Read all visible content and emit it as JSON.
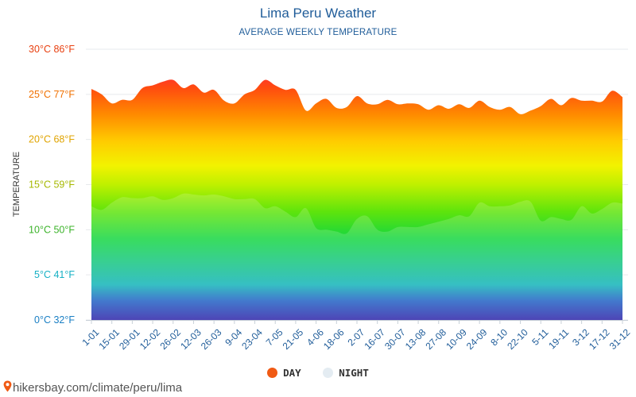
{
  "footer": {
    "url": "hikersbay.com/climate/peru/lima"
  },
  "legend": {
    "day_label": "DAY",
    "night_label": "NIGHT"
  },
  "colors": {
    "day_dot": "#f05a14",
    "night_dot": "#e4ecf2",
    "title": "#1f5c99",
    "axis_text": "#1f5c99"
  },
  "icons": {
    "footer_icon": "map-pin-icon"
  },
  "chart_data": {
    "type": "area",
    "title": "Lima Peru Weather",
    "subtitle": "AVERAGE WEEKLY TEMPERATURE",
    "ylabel": "TEMPERATURE",
    "ylim": [
      0,
      30
    ],
    "y_ticks": [
      {
        "value": 0,
        "label": "0°C 32°F",
        "color": "#1a7fc4"
      },
      {
        "value": 5,
        "label": "5°C 41°F",
        "color": "#16b0c4"
      },
      {
        "value": 10,
        "label": "10°C 50°F",
        "color": "#3cb32a"
      },
      {
        "value": 15,
        "label": "15°C 59°F",
        "color": "#a6b800"
      },
      {
        "value": 20,
        "label": "20°C 68°F",
        "color": "#e0a400"
      },
      {
        "value": 25,
        "label": "25°C 77°F",
        "color": "#f07000"
      },
      {
        "value": 30,
        "label": "30°C 86°F",
        "color": "#e84010"
      }
    ],
    "x_tick_labels": [
      "1-01",
      "15-01",
      "29-01",
      "12-02",
      "26-02",
      "12-03",
      "26-03",
      "9-04",
      "23-04",
      "7-05",
      "21-05",
      "4-06",
      "18-06",
      "2-07",
      "16-07",
      "30-07",
      "13-08",
      "27-08",
      "10-09",
      "24-09",
      "8-10",
      "22-10",
      "5-11",
      "19-11",
      "3-12",
      "17-12",
      "31-12"
    ],
    "grid": true,
    "legend_position": "bottom",
    "series": [
      {
        "name": "DAY",
        "values": [
          25.6,
          25.0,
          24.0,
          24.4,
          24.4,
          25.7,
          26.0,
          26.4,
          26.6,
          25.7,
          26.1,
          25.2,
          25.5,
          24.3,
          24.0,
          25.0,
          25.5,
          26.6,
          26.0,
          25.5,
          25.5,
          23.2,
          24.0,
          24.5,
          23.5,
          23.6,
          24.8,
          24.0,
          23.9,
          24.4,
          23.9,
          24.0,
          23.9,
          23.3,
          23.8,
          23.4,
          23.9,
          23.5,
          24.3,
          23.6,
          23.3,
          23.6,
          22.8,
          23.2,
          23.7,
          24.5,
          23.8,
          24.6,
          24.3,
          24.3,
          24.2,
          25.4,
          24.7
        ]
      },
      {
        "name": "NIGHT",
        "values": [
          12.6,
          12.2,
          13.0,
          13.6,
          13.5,
          13.5,
          13.7,
          13.3,
          13.5,
          14.0,
          13.9,
          13.8,
          13.9,
          13.7,
          13.4,
          13.4,
          13.4,
          12.4,
          12.6,
          12.0,
          11.4,
          12.4,
          10.2,
          10.0,
          9.8,
          9.6,
          11.2,
          11.5,
          10.0,
          9.8,
          10.3,
          10.3,
          10.3,
          10.6,
          10.9,
          11.2,
          11.6,
          11.5,
          13.0,
          12.6,
          12.6,
          12.7,
          13.1,
          13.1,
          11.0,
          11.4,
          11.2,
          11.1,
          12.6,
          11.8,
          12.3,
          13.0,
          12.9
        ]
      }
    ]
  }
}
